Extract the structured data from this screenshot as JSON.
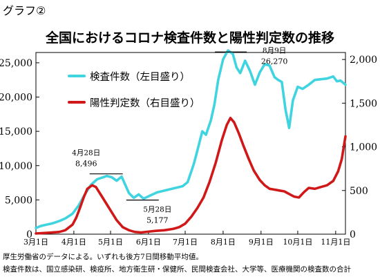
{
  "page_label": "グラフ②",
  "notes": [
    "厚生労働省のデータによる。いずれも後方7日間移動平均値。",
    "検査件数は、国立感染研、検疫所、地方衛生研・保健所、民間検査会社、大学等、医療機関の検査数の合計"
  ],
  "colors": {
    "tests": "#3fd4e0",
    "positives": "#d01818"
  },
  "chart_data": {
    "type": "line",
    "title": "全国におけるコロナ検査件数と陽性判定数の推移",
    "x_tick_labels": [
      "3月1日",
      "4月1日",
      "5月1日",
      "6月1日",
      "7月1日",
      "8月1日",
      "9月1日",
      "10月1日",
      "11月1日"
    ],
    "x_range": [
      "2020-03-01",
      "2020-11-09"
    ],
    "y_left": {
      "ticks": [
        "0",
        "5,000",
        "10,000",
        "15,000",
        "20,000",
        "25,000"
      ],
      "lim": [
        0,
        26500
      ]
    },
    "y_right": {
      "ticks": [
        "0",
        "500",
        "1,000",
        "1,500",
        "2,000"
      ],
      "lim": [
        0,
        2080
      ]
    },
    "grid": false,
    "legend": "top-left",
    "series": [
      {
        "name": "検査件数（左目盛り）",
        "axis": "left",
        "color": "#3fd4e0",
        "points": [
          [
            "2020-03-01",
            900
          ],
          [
            "2020-03-05",
            1200
          ],
          [
            "2020-03-10",
            1400
          ],
          [
            "2020-03-15",
            1600
          ],
          [
            "2020-03-20",
            1900
          ],
          [
            "2020-03-25",
            2300
          ],
          [
            "2020-03-31",
            3000
          ],
          [
            "2020-04-05",
            4200
          ],
          [
            "2020-04-10",
            5800
          ],
          [
            "2020-04-15",
            7200
          ],
          [
            "2020-04-20",
            8000
          ],
          [
            "2020-04-25",
            8300
          ],
          [
            "2020-04-28",
            8496
          ],
          [
            "2020-05-02",
            8300
          ],
          [
            "2020-05-06",
            7800
          ],
          [
            "2020-05-10",
            8400
          ],
          [
            "2020-05-13",
            7200
          ],
          [
            "2020-05-16",
            6000
          ],
          [
            "2020-05-20",
            5300
          ],
          [
            "2020-05-24",
            5800
          ],
          [
            "2020-05-28",
            5177
          ],
          [
            "2020-06-02",
            5600
          ],
          [
            "2020-06-08",
            6100
          ],
          [
            "2020-06-15",
            6400
          ],
          [
            "2020-06-22",
            6700
          ],
          [
            "2020-06-29",
            7000
          ],
          [
            "2020-07-03",
            7600
          ],
          [
            "2020-07-08",
            10200
          ],
          [
            "2020-07-11",
            12200
          ],
          [
            "2020-07-15",
            15000
          ],
          [
            "2020-07-18",
            14500
          ],
          [
            "2020-07-22",
            16600
          ],
          [
            "2020-07-25",
            19000
          ],
          [
            "2020-07-28",
            22500
          ],
          [
            "2020-08-01",
            25500
          ],
          [
            "2020-08-05",
            26800
          ],
          [
            "2020-08-09",
            26270
          ],
          [
            "2020-08-12",
            24300
          ],
          [
            "2020-08-15",
            23500
          ],
          [
            "2020-08-19",
            25300
          ],
          [
            "2020-08-23",
            23800
          ],
          [
            "2020-08-27",
            21800
          ],
          [
            "2020-08-31",
            23600
          ],
          [
            "2020-09-04",
            24800
          ],
          [
            "2020-09-08",
            24600
          ],
          [
            "2020-09-12",
            22900
          ],
          [
            "2020-09-15",
            22500
          ],
          [
            "2020-09-18",
            22200
          ],
          [
            "2020-09-21",
            18200
          ],
          [
            "2020-09-24",
            15500
          ],
          [
            "2020-09-27",
            19500
          ],
          [
            "2020-10-01",
            21500
          ],
          [
            "2020-10-05",
            21200
          ],
          [
            "2020-10-10",
            21800
          ],
          [
            "2020-10-15",
            22500
          ],
          [
            "2020-10-20",
            22600
          ],
          [
            "2020-10-25",
            22700
          ],
          [
            "2020-10-30",
            23000
          ],
          [
            "2020-11-02",
            22300
          ],
          [
            "2020-11-05",
            22400
          ],
          [
            "2020-11-09",
            21800
          ]
        ]
      },
      {
        "name": "陽性判定数（右目盛り）",
        "axis": "right",
        "color": "#d01818",
        "points": [
          [
            "2020-03-01",
            8
          ],
          [
            "2020-03-10",
            15
          ],
          [
            "2020-03-20",
            25
          ],
          [
            "2020-03-25",
            45
          ],
          [
            "2020-03-31",
            110
          ],
          [
            "2020-04-03",
            190
          ],
          [
            "2020-04-06",
            300
          ],
          [
            "2020-04-09",
            420
          ],
          [
            "2020-04-12",
            520
          ],
          [
            "2020-04-16",
            560
          ],
          [
            "2020-04-19",
            540
          ],
          [
            "2020-04-24",
            430
          ],
          [
            "2020-04-28",
            340
          ],
          [
            "2020-05-02",
            250
          ],
          [
            "2020-05-06",
            160
          ],
          [
            "2020-05-11",
            80
          ],
          [
            "2020-05-16",
            45
          ],
          [
            "2020-05-21",
            25
          ],
          [
            "2020-05-26",
            20
          ],
          [
            "2020-05-31",
            28
          ],
          [
            "2020-06-07",
            38
          ],
          [
            "2020-06-14",
            45
          ],
          [
            "2020-06-21",
            60
          ],
          [
            "2020-06-26",
            80
          ],
          [
            "2020-07-01",
            120
          ],
          [
            "2020-07-06",
            200
          ],
          [
            "2020-07-11",
            300
          ],
          [
            "2020-07-16",
            420
          ],
          [
            "2020-07-21",
            600
          ],
          [
            "2020-07-26",
            820
          ],
          [
            "2020-07-31",
            1080
          ],
          [
            "2020-08-04",
            1250
          ],
          [
            "2020-08-07",
            1330
          ],
          [
            "2020-08-10",
            1280
          ],
          [
            "2020-08-14",
            1150
          ],
          [
            "2020-08-18",
            1000
          ],
          [
            "2020-08-22",
            860
          ],
          [
            "2020-08-26",
            730
          ],
          [
            "2020-08-31",
            620
          ],
          [
            "2020-09-04",
            560
          ],
          [
            "2020-09-08",
            520
          ],
          [
            "2020-09-12",
            510
          ],
          [
            "2020-09-16",
            500
          ],
          [
            "2020-09-20",
            490
          ],
          [
            "2020-09-24",
            460
          ],
          [
            "2020-09-28",
            430
          ],
          [
            "2020-10-02",
            420
          ],
          [
            "2020-10-06",
            480
          ],
          [
            "2020-10-10",
            530
          ],
          [
            "2020-10-15",
            520
          ],
          [
            "2020-10-20",
            540
          ],
          [
            "2020-10-25",
            560
          ],
          [
            "2020-10-30",
            610
          ],
          [
            "2020-11-03",
            720
          ],
          [
            "2020-11-06",
            860
          ],
          [
            "2020-11-09",
            1120
          ]
        ]
      }
    ],
    "annotations": [
      {
        "label": "4月28日",
        "value": "8,496"
      },
      {
        "label": "5月28日",
        "value": "5,177"
      },
      {
        "label": "8月9日",
        "value": "26,270"
      }
    ]
  }
}
